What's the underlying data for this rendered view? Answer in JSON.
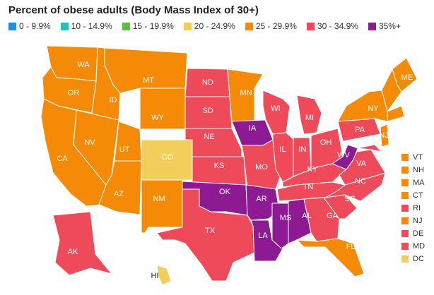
{
  "title": "Percent of obese adults (Body Mass Index of 30+)",
  "legend": [
    {
      "label": "0 - 9.9%",
      "color": "#1f8fe0"
    },
    {
      "label": "10 - 14.9%",
      "color": "#2bbfb8"
    },
    {
      "label": "15 - 19.9%",
      "color": "#5cbf3a"
    },
    {
      "label": "20 - 24.9%",
      "color": "#f2cf5b"
    },
    {
      "label": "25 - 29.9%",
      "color": "#f58a07"
    },
    {
      "label": "30 - 34.9%",
      "color": "#ef4a5a"
    },
    {
      "label": "35%+",
      "color": "#8d1a92"
    }
  ],
  "states": {
    "WA": {
      "label": "WA",
      "cls": "25 - 29.9%"
    },
    "OR": {
      "label": "OR",
      "cls": "25 - 29.9%"
    },
    "CA": {
      "label": "CA",
      "cls": "25 - 29.9%"
    },
    "ID": {
      "label": "ID",
      "cls": "25 - 29.9%"
    },
    "NV": {
      "label": "NV",
      "cls": "25 - 29.9%"
    },
    "MT": {
      "label": "MT",
      "cls": "25 - 29.9%"
    },
    "WY": {
      "label": "WY",
      "cls": "25 - 29.9%"
    },
    "UT": {
      "label": "UT",
      "cls": "25 - 29.9%"
    },
    "AZ": {
      "label": "AZ",
      "cls": "25 - 29.9%"
    },
    "CO": {
      "label": "CO",
      "cls": "20 - 24.9%"
    },
    "NM": {
      "label": "NM",
      "cls": "25 - 29.9%"
    },
    "ND": {
      "label": "ND",
      "cls": "30 - 34.9%"
    },
    "SD": {
      "label": "SD",
      "cls": "30 - 34.9%"
    },
    "NE": {
      "label": "NE",
      "cls": "30 - 34.9%"
    },
    "KS": {
      "label": "KS",
      "cls": "30 - 34.9%"
    },
    "OK": {
      "label": "OK",
      "cls": "35%+"
    },
    "TX": {
      "label": "TX",
      "cls": "30 - 34.9%"
    },
    "MN": {
      "label": "MN",
      "cls": "25 - 29.9%"
    },
    "IA": {
      "label": "IA",
      "cls": "35%+"
    },
    "MO": {
      "label": "MO",
      "cls": "30 - 34.9%"
    },
    "AR": {
      "label": "AR",
      "cls": "35%+"
    },
    "LA": {
      "label": "LA",
      "cls": "35%+"
    },
    "WI": {
      "label": "WI",
      "cls": "30 - 34.9%"
    },
    "IL": {
      "label": "IL",
      "cls": "30 - 34.9%"
    },
    "MI": {
      "label": "MI",
      "cls": "30 - 34.9%"
    },
    "IN": {
      "label": "IN",
      "cls": "30 - 34.9%"
    },
    "OH": {
      "label": "OH",
      "cls": "30 - 34.9%"
    },
    "KY": {
      "label": "KY",
      "cls": "30 - 34.9%"
    },
    "TN": {
      "label": "TN",
      "cls": "30 - 34.9%"
    },
    "MS": {
      "label": "MS",
      "cls": "35%+"
    },
    "AL": {
      "label": "AL",
      "cls": "35%+"
    },
    "GA": {
      "label": "GA",
      "cls": "30 - 34.9%"
    },
    "FL": {
      "label": "FL",
      "cls": "25 - 29.9%"
    },
    "SC": {
      "label": "SC",
      "cls": "30 - 34.9%"
    },
    "NC": {
      "label": "NC",
      "cls": "30 - 34.9%"
    },
    "VA": {
      "label": "VA",
      "cls": "30 - 34.9%"
    },
    "WV": {
      "label": "WV",
      "cls": "35%+"
    },
    "PA": {
      "label": "PA",
      "cls": "30 - 34.9%"
    },
    "NY": {
      "label": "NY",
      "cls": "25 - 29.9%"
    },
    "ME": {
      "label": "ME",
      "cls": "25 - 29.9%"
    },
    "NJ": {
      "label": "NJ",
      "cls": "25 - 29.9%"
    },
    "AK": {
      "label": "AK",
      "cls": "30 - 34.9%"
    },
    "HI": {
      "label": "HI",
      "cls": "20 - 24.9%"
    }
  },
  "small_states": [
    {
      "label": "VT",
      "cls": "25 - 29.9%"
    },
    {
      "label": "NH",
      "cls": "25 - 29.9%"
    },
    {
      "label": "MA",
      "cls": "25 - 29.9%"
    },
    {
      "label": "CT",
      "cls": "25 - 29.9%"
    },
    {
      "label": "RI",
      "cls": "30 - 34.9%"
    },
    {
      "label": "NJ",
      "cls": "25 - 29.9%"
    },
    {
      "label": "DE",
      "cls": "30 - 34.9%"
    },
    {
      "label": "MD",
      "cls": "30 - 34.9%"
    },
    {
      "label": "DC",
      "cls": "20 - 24.9%"
    }
  ]
}
